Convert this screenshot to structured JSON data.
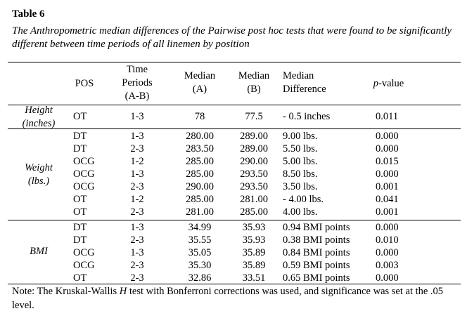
{
  "title": "Table 6",
  "subtitle": "The Anthropometric median differences of the Pairwise post hoc tests that were found to be significantly different between time periods of all linemen by position",
  "headers": {
    "pos": "POS",
    "time_periods": [
      "Time",
      "Periods",
      "(A-B)"
    ],
    "median_a": [
      "Median",
      "(A)"
    ],
    "median_b": [
      "Median",
      "(B)"
    ],
    "median_diff": [
      "Median",
      "Difference"
    ],
    "p_value_italic": "p",
    "p_value_rest": "-value"
  },
  "groups": {
    "height": [
      "Height",
      "(inches)"
    ],
    "weight": [
      "Weight",
      "(lbs.)"
    ],
    "bmi": "BMI"
  },
  "rows": [
    {
      "pos": "OT",
      "time": "1-3",
      "a": "78",
      "b": "77.5",
      "diff": "- 0.5 inches",
      "p": "0.011"
    },
    {
      "pos": "DT",
      "time": "1-3",
      "a": "280.00",
      "b": "289.00",
      "diff": "9.00 lbs.",
      "p": "0.000"
    },
    {
      "pos": "DT",
      "time": "2-3",
      "a": "283.50",
      "b": "289.00",
      "diff": "5.50 lbs.",
      "p": "0.000"
    },
    {
      "pos": "OCG",
      "time": "1-2",
      "a": "285.00",
      "b": "290.00",
      "diff": "5.00 lbs.",
      "p": "0.015"
    },
    {
      "pos": "OCG",
      "time": "1-3",
      "a": "285.00",
      "b": "293.50",
      "diff": "8.50 lbs.",
      "p": "0.000"
    },
    {
      "pos": "OCG",
      "time": "2-3",
      "a": "290.00",
      "b": "293.50",
      "diff": "3.50 lbs.",
      "p": "0.001"
    },
    {
      "pos": "OT",
      "time": "1-2",
      "a": "285.00",
      "b": "281.00",
      "diff": "- 4.00 lbs.",
      "p": "0.041"
    },
    {
      "pos": "OT",
      "time": "2-3",
      "a": "281.00",
      "b": "285.00",
      "diff": "4.00 lbs.",
      "p": "0.001"
    },
    {
      "pos": "DT",
      "time": "1-3",
      "a": "34.99",
      "b": "35.93",
      "diff": "0.94 BMI points",
      "p": "0.000"
    },
    {
      "pos": "DT",
      "time": "2-3",
      "a": "35.55",
      "b": "35.93",
      "diff": "0.38 BMI points",
      "p": "0.010"
    },
    {
      "pos": "OCG",
      "time": "1-3",
      "a": "35.05",
      "b": "35.89",
      "diff": "0.84 BMI points",
      "p": "0.000"
    },
    {
      "pos": "OCG",
      "time": "2-3",
      "a": "35.30",
      "b": "35.89",
      "diff": "0.59 BMI points",
      "p": "0.003"
    },
    {
      "pos": "OT",
      "time": "2-3",
      "a": "32.86",
      "b": "33.51",
      "diff": "0.65 BMI points",
      "p": "0.000"
    }
  ],
  "note": {
    "prefix": "Note: The Kruskal-Wallis ",
    "italic": "H",
    "suffix": " test with Bonferroni corrections was used, and significance was set at the .05 level."
  }
}
